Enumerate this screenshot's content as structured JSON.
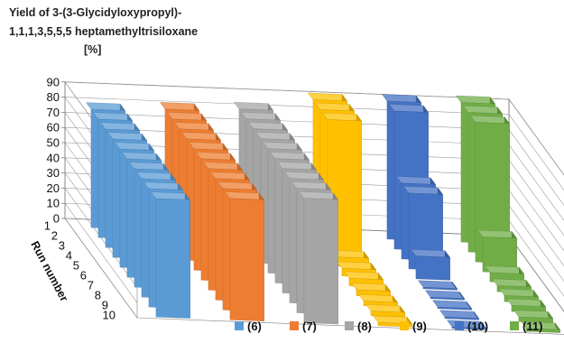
{
  "chart_data": {
    "type": "bar",
    "title_lines": [
      "Yield of 3-(3-Glycidyloxypropyl)-",
      "1,1,1,3,5,5,5 heptamethyltrisiloxane",
      "[%]"
    ],
    "xlabel": "Run number",
    "ylabel": "",
    "zlim": [
      0,
      90
    ],
    "z_ticks": [
      "0",
      "10",
      "20",
      "30",
      "40",
      "50",
      "60",
      "70",
      "80",
      "90"
    ],
    "categories": [
      "1",
      "2",
      "3",
      "4",
      "5",
      "6",
      "7",
      "8",
      "9",
      "10"
    ],
    "grid": true,
    "legend_position": "bottom-right",
    "series": [
      {
        "name": "(6)",
        "color": "#5b9bd5",
        "values": [
          78,
          78,
          78,
          78,
          78,
          78,
          78,
          78,
          78,
          78
        ]
      },
      {
        "name": "(7)",
        "color": "#ed7d31",
        "values": [
          80,
          80,
          80,
          80,
          80,
          80,
          80,
          80,
          80,
          80
        ]
      },
      {
        "name": "(8)",
        "color": "#a5a5a5",
        "values": [
          82,
          82,
          82,
          82,
          82,
          82,
          82,
          82,
          82,
          82
        ]
      },
      {
        "name": "(9)",
        "color": "#ffc000",
        "values": [
          90,
          90,
          90,
          6,
          5,
          5,
          4,
          3,
          3,
          2
        ]
      },
      {
        "name": "(10)",
        "color": "#4472c4",
        "values": [
          91,
          91,
          50,
          50,
          15,
          1,
          1,
          1,
          1,
          1
        ]
      },
      {
        "name": "(11)",
        "color": "#70ad47",
        "values": [
          92,
          92,
          92,
          23,
          6,
          4,
          4,
          4,
          3,
          2
        ]
      }
    ]
  }
}
